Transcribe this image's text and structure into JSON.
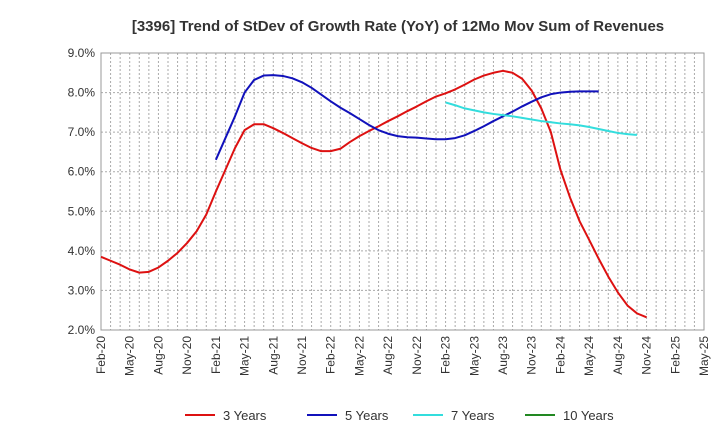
{
  "chart_data": {
    "type": "line",
    "title": "[3396]  Trend of StDev of Growth Rate (YoY) of 12Mo Mov Sum of Revenues",
    "xlabel": "",
    "ylabel": "",
    "ylim": [
      2.0,
      9.0
    ],
    "y_ticks": [
      "2.0%",
      "3.0%",
      "4.0%",
      "5.0%",
      "6.0%",
      "7.0%",
      "8.0%",
      "9.0%"
    ],
    "x_tick_labels": [
      "Feb-20",
      "May-20",
      "Aug-20",
      "Nov-20",
      "Feb-21",
      "May-21",
      "Aug-21",
      "Nov-21",
      "Feb-22",
      "May-22",
      "Aug-22",
      "Nov-22",
      "Feb-23",
      "May-23",
      "Aug-23",
      "Nov-23",
      "Feb-24",
      "May-24",
      "Aug-24",
      "Nov-24",
      "Feb-25",
      "May-25"
    ],
    "grid": true,
    "legend_position": "bottom",
    "series": [
      {
        "name": "3 Years",
        "color": "#dd1111",
        "start_index": 0,
        "values": [
          3.85,
          3.75,
          3.65,
          3.53,
          3.45,
          3.47,
          3.58,
          3.75,
          3.95,
          4.2,
          4.5,
          4.92,
          5.5,
          6.05,
          6.6,
          7.05,
          7.2,
          7.2,
          7.1,
          6.98,
          6.85,
          6.72,
          6.6,
          6.52,
          6.52,
          6.58,
          6.75,
          6.9,
          7.03,
          7.15,
          7.28,
          7.4,
          7.53,
          7.65,
          7.78,
          7.9,
          7.98,
          8.08,
          8.2,
          8.33,
          8.43,
          8.5,
          8.55,
          8.5,
          8.35,
          8.05,
          7.6,
          7.0,
          6.05,
          5.35,
          4.75,
          4.28,
          3.8,
          3.35,
          2.95,
          2.62,
          2.42,
          2.32
        ]
      },
      {
        "name": "5 Years",
        "color": "#1111bb",
        "start_index": 12,
        "values": [
          6.3,
          6.85,
          7.4,
          8.0,
          8.32,
          8.43,
          8.44,
          8.42,
          8.36,
          8.26,
          8.12,
          7.95,
          7.78,
          7.62,
          7.48,
          7.33,
          7.18,
          7.05,
          6.96,
          6.9,
          6.87,
          6.86,
          6.84,
          6.82,
          6.82,
          6.85,
          6.92,
          7.03,
          7.15,
          7.28,
          7.4,
          7.52,
          7.65,
          7.77,
          7.88,
          7.96,
          8.0,
          8.02,
          8.03,
          8.03,
          8.03
        ]
      },
      {
        "name": "7 Years",
        "color": "#33dddd",
        "start_index": 36,
        "values": [
          7.75,
          7.68,
          7.6,
          7.55,
          7.5,
          7.46,
          7.43,
          7.4,
          7.36,
          7.32,
          7.28,
          7.25,
          7.22,
          7.2,
          7.17,
          7.13,
          7.08,
          7.03,
          6.98,
          6.95,
          6.93
        ]
      },
      {
        "name": "10 Years",
        "color": "#228822",
        "start_index": 0,
        "values": []
      }
    ]
  }
}
